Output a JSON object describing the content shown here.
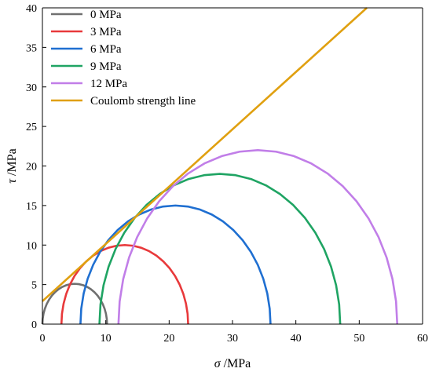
{
  "chart_data": {
    "type": "line",
    "xlabel_symbol": "σ",
    "xlabel_unit": " /MPa",
    "ylabel_symbol": "τ",
    "ylabel_unit": " /MPa",
    "xlim": [
      0,
      60
    ],
    "ylim": [
      0,
      40
    ],
    "xticks": [
      0,
      10,
      20,
      30,
      40,
      50,
      60
    ],
    "yticks": [
      0,
      5,
      10,
      15,
      20,
      25,
      30,
      35,
      40
    ],
    "grid": false,
    "legend_position": "top-left",
    "mohr_circles": [
      {
        "name": "0 MPa",
        "sigma3": 0,
        "sigma1": 10.2,
        "color": "#707070"
      },
      {
        "name": "3 MPa",
        "sigma3": 3,
        "sigma1": 23,
        "color": "#e8393b"
      },
      {
        "name": "6 MPa",
        "sigma3": 6,
        "sigma1": 36,
        "color": "#1f6fd1"
      },
      {
        "name": "9 MPa",
        "sigma3": 9,
        "sigma1": 47,
        "color": "#1fa463"
      },
      {
        "name": "12 MPa",
        "sigma3": 12,
        "sigma1": 56,
        "color": "#c17ee8"
      }
    ],
    "strength_line": {
      "name": "Coulomb strength line",
      "x": [
        0,
        51.2
      ],
      "y": [
        2.9,
        40
      ],
      "color": "#e0a010"
    }
  }
}
